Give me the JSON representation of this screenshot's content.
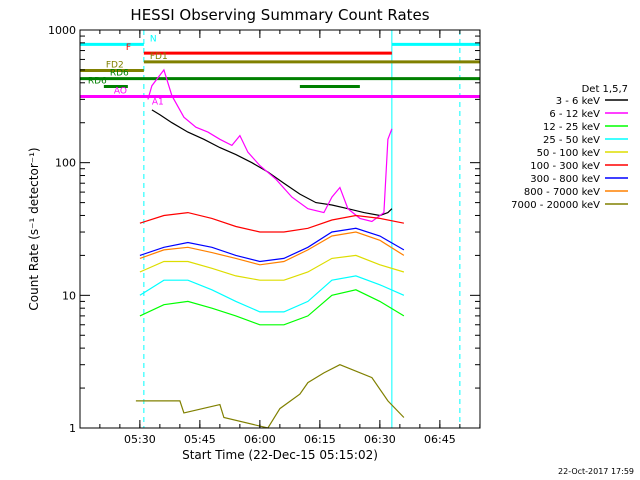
{
  "chart_data": {
    "type": "line",
    "title": "HESSI Observing Summary Count Rates",
    "xlabel": "Start Time (22-Dec-15 05:15:02)",
    "ylabel": "Count Rate (s⁻¹ detector⁻¹)",
    "yscale": "log",
    "ylim": [
      1,
      1000
    ],
    "xlim": [
      "05:15:02",
      "06:55:02"
    ],
    "x_ticks": [
      "05:30",
      "05:45",
      "06:00",
      "06:15",
      "06:30",
      "06:45"
    ],
    "y_ticks": [
      "1",
      "10",
      "100",
      "1000"
    ],
    "legend_title": "Det 1,5,7",
    "legend_position": "right",
    "timestamp": "22-Oct-2017 17:59",
    "series": [
      {
        "name": "3 - 6 keV",
        "color": "#000000",
        "x": [
          "05:33",
          "05:35",
          "05:38",
          "05:42",
          "05:46",
          "05:50",
          "05:54",
          "05:58",
          "06:02",
          "06:06",
          "06:10",
          "06:14",
          "06:18",
          "06:22",
          "06:26",
          "06:30",
          "06:32",
          "06:33"
        ],
        "values": [
          250,
          230,
          200,
          170,
          150,
          130,
          115,
          100,
          85,
          70,
          58,
          50,
          48,
          45,
          42,
          40,
          42,
          45
        ]
      },
      {
        "name": "6 - 12 keV",
        "color": "#ff00ff",
        "x": [
          "05:32",
          "05:33",
          "05:36",
          "05:38",
          "05:41",
          "05:44",
          "05:47",
          "05:50",
          "05:53",
          "05:55",
          "05:57",
          "06:00",
          "06:04",
          "06:08",
          "06:12",
          "06:16",
          "06:18",
          "06:20",
          "06:22",
          "06:25",
          "06:28",
          "06:31",
          "06:32",
          "06:33"
        ],
        "values": [
          300,
          380,
          500,
          320,
          220,
          185,
          170,
          150,
          135,
          160,
          120,
          95,
          75,
          55,
          45,
          42,
          55,
          65,
          45,
          38,
          36,
          42,
          150,
          180
        ]
      },
      {
        "name": "12 - 25 keV",
        "color": "#00ff00",
        "x": [
          "05:30",
          "05:36",
          "05:42",
          "05:48",
          "05:54",
          "06:00",
          "06:06",
          "06:12",
          "06:18",
          "06:24",
          "06:30",
          "06:36"
        ],
        "values": [
          7,
          8.5,
          9,
          8,
          7,
          6,
          6,
          7,
          10,
          11,
          9,
          7
        ]
      },
      {
        "name": "25 - 50 keV",
        "color": "#00ffff",
        "x": [
          "05:30",
          "05:36",
          "05:42",
          "05:48",
          "05:54",
          "06:00",
          "06:06",
          "06:12",
          "06:18",
          "06:24",
          "06:30",
          "06:36"
        ],
        "values": [
          10,
          13,
          13,
          11,
          9,
          7.5,
          7.5,
          9,
          13,
          14,
          12,
          10
        ]
      },
      {
        "name": "50 - 100 keV",
        "color": "#dddd00",
        "x": [
          "05:30",
          "05:36",
          "05:42",
          "05:48",
          "05:54",
          "06:00",
          "06:06",
          "06:12",
          "06:18",
          "06:24",
          "06:30",
          "06:36"
        ],
        "values": [
          15,
          18,
          18,
          16,
          14,
          13,
          13,
          15,
          19,
          20,
          17,
          15
        ]
      },
      {
        "name": "100 - 300 keV",
        "color": "#ff0000",
        "x": [
          "05:30",
          "05:36",
          "05:42",
          "05:48",
          "05:54",
          "06:00",
          "06:06",
          "06:12",
          "06:18",
          "06:24",
          "06:30",
          "06:36"
        ],
        "values": [
          35,
          40,
          42,
          38,
          33,
          30,
          30,
          32,
          37,
          40,
          38,
          35
        ]
      },
      {
        "name": "300 - 800 keV",
        "color": "#0000ff",
        "x": [
          "05:30",
          "05:36",
          "05:42",
          "05:48",
          "05:54",
          "06:00",
          "06:06",
          "06:12",
          "06:18",
          "06:24",
          "06:30",
          "06:36"
        ],
        "values": [
          20,
          23,
          25,
          23,
          20,
          18,
          19,
          23,
          30,
          32,
          28,
          22
        ]
      },
      {
        "name": "800 - 7000 keV",
        "color": "#ff8000",
        "x": [
          "05:30",
          "05:36",
          "05:42",
          "05:48",
          "05:54",
          "06:00",
          "06:06",
          "06:12",
          "06:18",
          "06:24",
          "06:30",
          "06:36"
        ],
        "values": [
          19,
          22,
          23,
          21,
          19,
          17,
          18,
          22,
          28,
          30,
          26,
          20
        ]
      },
      {
        "name": "7000 - 20000 keV",
        "color": "#808000",
        "x": [
          "05:29",
          "05:40",
          "05:41",
          "05:50",
          "05:51",
          "06:02",
          "06:05",
          "06:10",
          "06:12",
          "06:16",
          "06:20",
          "06:28",
          "06:32",
          "06:36"
        ],
        "values": [
          1.6,
          1.6,
          1.3,
          1.5,
          1.2,
          1.0,
          1.4,
          1.8,
          2.2,
          2.6,
          3.0,
          2.4,
          1.6,
          1.2
        ]
      }
    ],
    "annotations": [
      {
        "label": "N",
        "color": "#00ffff",
        "segments": [
          [
            "05:15",
            "05:31"
          ],
          [
            "06:33",
            "06:55"
          ]
        ],
        "y": 780
      },
      {
        "label": "F",
        "color": "#ff0000",
        "segments": [
          [
            "05:31",
            "06:33"
          ]
        ],
        "y": 670
      },
      {
        "label": "FD1",
        "color": "#808000",
        "segments": [
          [
            "05:31",
            "06:55"
          ]
        ],
        "y": 575
      },
      {
        "label": "FD2",
        "color": "#808000",
        "segments": [
          [
            "05:15",
            "05:31"
          ]
        ],
        "y": 495
      },
      {
        "label": "RD6",
        "color": "#008000",
        "segments": [
          [
            "05:15",
            "06:55"
          ]
        ],
        "y": 430
      },
      {
        "label": "RD6",
        "color": "#008000",
        "segments": [
          [
            "05:21",
            "05:27"
          ],
          [
            "06:10",
            "06:25"
          ]
        ],
        "y": 375
      },
      {
        "label": "AO",
        "color": "#ff00ff",
        "segments": [
          [
            "05:15",
            "06:55"
          ]
        ],
        "y": 315
      },
      {
        "label": "A1",
        "color": "#ff00ff",
        "segments": [],
        "y": 260
      }
    ],
    "vlines": [
      {
        "color": "#00ffff",
        "x": "05:31"
      },
      {
        "color": "#00ffff",
        "x": "06:33"
      },
      {
        "color": "#00ffff",
        "x": "06:50"
      }
    ]
  }
}
